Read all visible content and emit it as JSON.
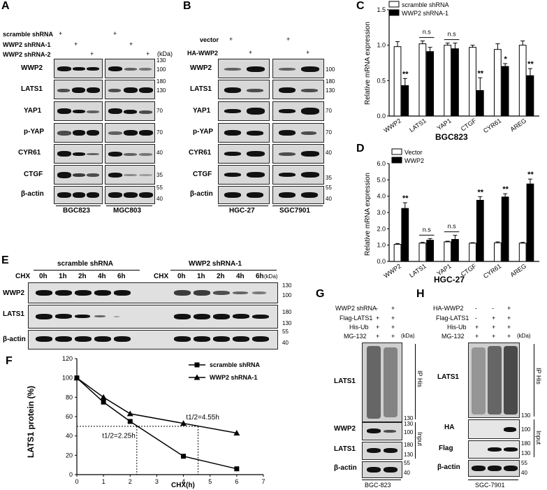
{
  "panels": [
    "A",
    "B",
    "C",
    "D",
    "E",
    "F",
    "G",
    "H"
  ],
  "panelA": {
    "conditions": [
      "scramble shRNA",
      "WWP2 shRNA-1",
      "WWP2 shRNA-2"
    ],
    "plus": "+",
    "kda": "(kDa)",
    "rows": [
      "WWP2",
      "LATS1",
      "YAP1",
      "p-YAP",
      "CYR61",
      "CTGF",
      "β-actin"
    ],
    "markers": [
      "130",
      "100",
      "180",
      "130",
      "70",
      "70",
      "40",
      "35",
      "55",
      "40"
    ],
    "cells": [
      "BGC823",
      "MGC803"
    ]
  },
  "panelB": {
    "conditions": [
      "vector",
      "HA-WWP2"
    ],
    "rows": [
      "WWP2",
      "LATS1",
      "YAP1",
      "p-YAP",
      "CYR61",
      "CTGF",
      "β-actin"
    ],
    "cells": [
      "HGC-27",
      "SGC7901"
    ]
  },
  "panelC": {
    "legend": [
      "scramble shRNA",
      "WWP2 shRNA-1"
    ],
    "ylabel": "Relative mRNA expression",
    "cell": "BGC823"
  },
  "panelD": {
    "legend": [
      "Vector",
      "WWP2"
    ],
    "ylabel": "Relative mRNA expression",
    "cell": "HGC-27"
  },
  "panelE": {
    "cond1": "scramble shRNA",
    "cond2": "WWP2 shRNA-1",
    "cht": "CHX",
    "times": [
      "0h",
      "1h",
      "2h",
      "4h",
      "6h"
    ],
    "rows": [
      "WWP2",
      "LATS1",
      "β-actin"
    ],
    "markers": [
      "130",
      "100",
      "180",
      "130",
      "55",
      "40"
    ]
  },
  "panelF": {
    "ylabel": "LATS1 protein (%)",
    "xlabel": "CHX(h)",
    "ann1": "t1/2=2.25h",
    "ann2": "t1/2=4.55h"
  },
  "panelG": {
    "conditions": [
      "WWP2 shRNA",
      "Flag-LATS1",
      "His-Ub",
      "MG-132"
    ],
    "signs": [
      [
        "-",
        "+"
      ],
      [
        "+",
        "+"
      ],
      [
        "+",
        "+"
      ],
      [
        "+",
        "+"
      ]
    ],
    "rows": [
      "LATS1",
      "WWP2",
      "LATS1",
      "β-actin"
    ],
    "side": [
      "IP His",
      "Input"
    ],
    "markers": [
      "130",
      "130",
      "100",
      "180",
      "130",
      "55",
      "40"
    ],
    "cell": "BGC-823"
  },
  "panelH": {
    "conditions": [
      "HA-WWP2",
      "Flag-LATS1",
      "His-Ub",
      "MG-132"
    ],
    "signs": [
      [
        "-",
        "-",
        "+"
      ],
      [
        "-",
        "+",
        "+"
      ],
      [
        "+",
        "+",
        "+"
      ],
      [
        "+",
        "+",
        "+"
      ]
    ],
    "rows": [
      "LATS1",
      "HA",
      "Flag",
      "β-actin"
    ],
    "side": [
      "IP His",
      "Input"
    ],
    "markers": [
      "130",
      "100",
      "180",
      "130",
      "55",
      "40"
    ],
    "cell": "SGC-7901"
  },
  "chart_data": [
    {
      "type": "bar",
      "categories": [
        "WWP2",
        "LATS1",
        "YAP1",
        "CTGF",
        "CYR61",
        "AREG"
      ],
      "series": [
        {
          "name": "scramble shRNA",
          "values": [
            0.98,
            1.02,
            1.0,
            0.97,
            0.94,
            1.0
          ],
          "errors": [
            0.07,
            0.04,
            0.03,
            0.03,
            0.08,
            0.06
          ]
        },
        {
          "name": "WWP2 shRNA-1",
          "values": [
            0.43,
            0.91,
            0.95,
            0.36,
            0.7,
            0.57
          ],
          "errors": [
            0.1,
            0.06,
            0.08,
            0.18,
            0.04,
            0.1
          ]
        }
      ],
      "significance": [
        "**",
        "n.s",
        "n.s",
        "**",
        "*",
        "**"
      ],
      "ylabel": "Relative mRNA expression",
      "xlabel": "BGC823",
      "ylim": [
        0,
        1.5
      ],
      "yticks": [
        "0.0",
        "0.5",
        "1.0",
        "1.5"
      ],
      "legend_position": "top-left"
    },
    {
      "type": "bar",
      "categories": [
        "WWP2",
        "LATS1",
        "YAP1",
        "CTGF",
        "CYR61",
        "AREG"
      ],
      "series": [
        {
          "name": "Vector",
          "values": [
            1.05,
            1.12,
            1.2,
            1.12,
            1.14,
            1.12
          ],
          "errors": [
            0.05,
            0.05,
            0.04,
            0.03,
            0.06,
            0.05
          ]
        },
        {
          "name": "WWP2",
          "values": [
            3.25,
            1.3,
            1.35,
            3.75,
            3.95,
            4.75
          ],
          "errors": [
            0.35,
            0.1,
            0.25,
            0.22,
            0.2,
            0.3
          ]
        }
      ],
      "significance": [
        "**",
        "n.s",
        "n.s",
        "**",
        "**",
        "**"
      ],
      "ylabel": "Relative mRNA expression",
      "xlabel": "HGC-27",
      "ylim": [
        0,
        6
      ],
      "yticks": [
        "0.0",
        "1.0",
        "2.0",
        "3.0",
        "4.0",
        "5.0",
        "6.0"
      ],
      "legend_position": "top-left"
    },
    {
      "type": "line",
      "x": [
        0,
        1,
        2,
        4,
        6
      ],
      "series": [
        {
          "name": "scramble shRNA",
          "values": [
            100,
            75,
            55,
            19,
            6
          ],
          "marker": "square"
        },
        {
          "name": "WWP2 shRNA-1",
          "values": [
            100,
            80,
            63,
            53,
            43
          ],
          "marker": "triangle"
        }
      ],
      "ylabel": "LATS1 protein (%)",
      "xlabel": "CHX(h)",
      "xlim": [
        0,
        7
      ],
      "ylim": [
        0,
        120
      ],
      "xticks": [
        "0",
        "1",
        "2",
        "3",
        "4",
        "5",
        "6",
        "7"
      ],
      "yticks": [
        "0",
        "20",
        "40",
        "60",
        "80",
        "100",
        "120"
      ],
      "annotations": [
        "t1/2=2.25h",
        "t1/2=4.55h"
      ],
      "legend_position": "top-right"
    }
  ]
}
